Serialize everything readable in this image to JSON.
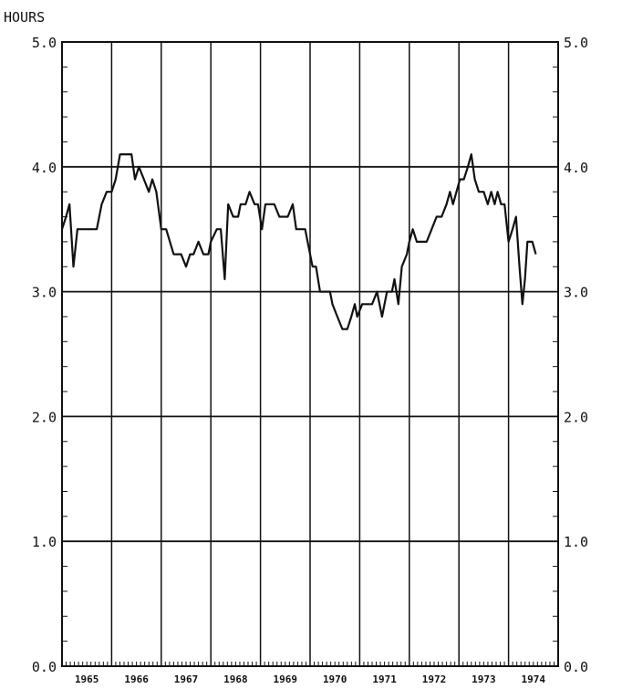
{
  "chart_data": {
    "type": "line",
    "ylabel": "HOURS",
    "ylim": [
      0,
      5
    ],
    "xlim": [
      1965,
      1975
    ],
    "y_ticks": [
      "0.0",
      "1.0",
      "2.0",
      "3.0",
      "4.0",
      "5.0"
    ],
    "x_tick_labels": [
      "1965",
      "1966",
      "1967",
      "1968",
      "1969",
      "1970",
      "1971",
      "1972",
      "1973",
      "1974"
    ],
    "grid": "horizontal at each 1.0 and vertical at each year",
    "y_axis_right_duplicate": true,
    "series": [
      {
        "color": "#111111",
        "points": [
          [
            1965.0,
            3.5
          ],
          [
            1965.08,
            3.6
          ],
          [
            1965.15,
            3.7
          ],
          [
            1965.23,
            3.2
          ],
          [
            1965.31,
            3.5
          ],
          [
            1965.4,
            3.5
          ],
          [
            1965.55,
            3.5
          ],
          [
            1965.7,
            3.5
          ],
          [
            1965.8,
            3.7
          ],
          [
            1965.9,
            3.8
          ],
          [
            1966.0,
            3.8
          ],
          [
            1966.08,
            3.9
          ],
          [
            1966.17,
            4.1
          ],
          [
            1966.3,
            4.1
          ],
          [
            1966.4,
            4.1
          ],
          [
            1966.47,
            3.9
          ],
          [
            1966.55,
            4.0
          ],
          [
            1966.65,
            3.9
          ],
          [
            1966.75,
            3.8
          ],
          [
            1966.82,
            3.9
          ],
          [
            1966.9,
            3.8
          ],
          [
            1967.0,
            3.5
          ],
          [
            1967.1,
            3.5
          ],
          [
            1967.25,
            3.3
          ],
          [
            1967.4,
            3.3
          ],
          [
            1967.5,
            3.2
          ],
          [
            1967.58,
            3.3
          ],
          [
            1967.65,
            3.3
          ],
          [
            1967.75,
            3.4
          ],
          [
            1967.85,
            3.3
          ],
          [
            1967.95,
            3.3
          ],
          [
            1968.0,
            3.4
          ],
          [
            1968.12,
            3.5
          ],
          [
            1968.2,
            3.5
          ],
          [
            1968.28,
            3.1
          ],
          [
            1968.35,
            3.7
          ],
          [
            1968.45,
            3.6
          ],
          [
            1968.55,
            3.6
          ],
          [
            1968.6,
            3.7
          ],
          [
            1968.7,
            3.7
          ],
          [
            1968.78,
            3.8
          ],
          [
            1968.88,
            3.7
          ],
          [
            1968.95,
            3.7
          ],
          [
            1969.03,
            3.5
          ],
          [
            1969.1,
            3.7
          ],
          [
            1969.28,
            3.7
          ],
          [
            1969.38,
            3.6
          ],
          [
            1969.55,
            3.6
          ],
          [
            1969.65,
            3.7
          ],
          [
            1969.72,
            3.5
          ],
          [
            1969.9,
            3.5
          ],
          [
            1970.0,
            3.3
          ],
          [
            1970.05,
            3.2
          ],
          [
            1970.12,
            3.2
          ],
          [
            1970.2,
            3.0
          ],
          [
            1970.4,
            3.0
          ],
          [
            1970.45,
            2.9
          ],
          [
            1970.55,
            2.8
          ],
          [
            1970.65,
            2.7
          ],
          [
            1970.75,
            2.7
          ],
          [
            1970.83,
            2.8
          ],
          [
            1970.9,
            2.9
          ],
          [
            1970.95,
            2.8
          ],
          [
            1971.05,
            2.9
          ],
          [
            1971.15,
            2.9
          ],
          [
            1971.25,
            2.9
          ],
          [
            1971.35,
            3.0
          ],
          [
            1971.45,
            2.8
          ],
          [
            1971.55,
            3.0
          ],
          [
            1971.65,
            3.0
          ],
          [
            1971.7,
            3.1
          ],
          [
            1971.78,
            2.9
          ],
          [
            1971.85,
            3.2
          ],
          [
            1971.95,
            3.3
          ],
          [
            1972.0,
            3.4
          ],
          [
            1972.07,
            3.5
          ],
          [
            1972.15,
            3.4
          ],
          [
            1972.35,
            3.4
          ],
          [
            1972.45,
            3.5
          ],
          [
            1972.55,
            3.6
          ],
          [
            1972.65,
            3.6
          ],
          [
            1972.75,
            3.7
          ],
          [
            1972.82,
            3.8
          ],
          [
            1972.88,
            3.7
          ],
          [
            1972.95,
            3.8
          ],
          [
            1973.02,
            3.9
          ],
          [
            1973.1,
            3.9
          ],
          [
            1973.18,
            4.0
          ],
          [
            1973.25,
            4.1
          ],
          [
            1973.32,
            3.9
          ],
          [
            1973.4,
            3.8
          ],
          [
            1973.5,
            3.8
          ],
          [
            1973.58,
            3.7
          ],
          [
            1973.65,
            3.8
          ],
          [
            1973.72,
            3.7
          ],
          [
            1973.78,
            3.8
          ],
          [
            1973.85,
            3.7
          ],
          [
            1973.92,
            3.7
          ],
          [
            1974.0,
            3.4
          ],
          [
            1974.08,
            3.5
          ],
          [
            1974.15,
            3.6
          ],
          [
            1974.22,
            3.2
          ],
          [
            1974.28,
            2.9
          ],
          [
            1974.33,
            3.1
          ],
          [
            1974.38,
            3.4
          ],
          [
            1974.48,
            3.4
          ],
          [
            1974.55,
            3.3
          ]
        ]
      }
    ]
  }
}
